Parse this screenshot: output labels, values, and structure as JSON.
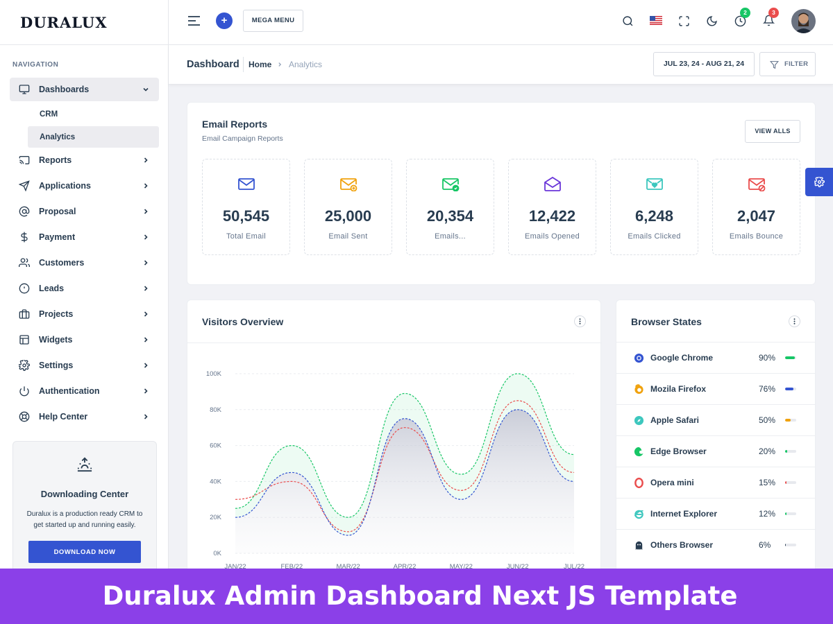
{
  "brand": {
    "logo": "DURALUX"
  },
  "sidebar": {
    "caption": "NAVIGATION",
    "items": [
      {
        "label": "Dashboards",
        "icon": "monitor-icon"
      },
      {
        "label": "Reports",
        "icon": "cast-icon"
      },
      {
        "label": "Applications",
        "icon": "send-icon"
      },
      {
        "label": "Proposal",
        "icon": "at-sign-icon"
      },
      {
        "label": "Payment",
        "icon": "dollar-icon"
      },
      {
        "label": "Customers",
        "icon": "users-icon"
      },
      {
        "label": "Leads",
        "icon": "alert-circle-icon"
      },
      {
        "label": "Projects",
        "icon": "briefcase-icon"
      },
      {
        "label": "Widgets",
        "icon": "layout-icon"
      },
      {
        "label": "Settings",
        "icon": "gear-icon"
      },
      {
        "label": "Authentication",
        "icon": "power-icon"
      },
      {
        "label": "Help Center",
        "icon": "life-buoy-icon"
      }
    ],
    "subitems": [
      {
        "label": "CRM"
      },
      {
        "label": "Analytics"
      }
    ],
    "download": {
      "title": "Downloading Center",
      "text": "Duralux is a production ready CRM to get started up and running easily.",
      "button": "DOWNLOAD NOW"
    }
  },
  "topbar": {
    "mega_menu": "MEGA MENU",
    "plus": "+",
    "timer_badge": "2",
    "notif_badge": "3"
  },
  "pagebar": {
    "title": "Dashboard",
    "crumb_home": "Home",
    "crumb_current": "Analytics",
    "date_range": "JUL 23, 24 - AUG 21, 24",
    "filter": "FILTER"
  },
  "email": {
    "title": "Email Reports",
    "subtitle": "Email Campaign Reports",
    "view_all": "VIEW ALLS",
    "stats": [
      {
        "value": "50,545",
        "label": "Total Email",
        "color": "#3454d1",
        "icon": "mail-icon"
      },
      {
        "value": "25,000",
        "label": "Email Sent",
        "color": "#f0a20e",
        "icon": "mail-plus-icon"
      },
      {
        "value": "20,354",
        "label": "Emails...",
        "color": "#17c666",
        "icon": "mail-check-icon"
      },
      {
        "value": "12,422",
        "label": "Emails Opened",
        "color": "#6a36d9",
        "icon": "mail-open-icon"
      },
      {
        "value": "6,248",
        "label": "Emails Clicked",
        "color": "#3dc7be",
        "icon": "mail-heart-icon"
      },
      {
        "value": "2,047",
        "label": "Emails Bounce",
        "color": "#ea4d4d",
        "icon": "mail-x-icon"
      }
    ]
  },
  "visitors": {
    "title": "Visitors Overview"
  },
  "browsers": {
    "title": "Browser States",
    "rows": [
      {
        "name": "Google Chrome",
        "pct": "90%",
        "value": 0.9,
        "color": "#17c666",
        "icon": "chrome-icon"
      },
      {
        "name": "Mozila Firefox",
        "pct": "76%",
        "value": 0.76,
        "color": "#3454d1",
        "icon": "firefox-icon"
      },
      {
        "name": "Apple Safari",
        "pct": "50%",
        "value": 0.5,
        "color": "#f0a20e",
        "icon": "safari-icon"
      },
      {
        "name": "Edge Browser",
        "pct": "20%",
        "value": 0.2,
        "color": "#17c666",
        "icon": "edge-icon"
      },
      {
        "name": "Opera mini",
        "pct": "15%",
        "value": 0.15,
        "color": "#ea4d4d",
        "icon": "opera-icon"
      },
      {
        "name": "Internet Explorer",
        "pct": "12%",
        "value": 0.12,
        "color": "#17c666",
        "icon": "ie-icon"
      },
      {
        "name": "Others Browser",
        "pct": "6%",
        "value": 0.06,
        "color": "#283c50",
        "icon": "others-icon"
      }
    ]
  },
  "banner": {
    "text": "Duralux Admin Dashboard Next JS Template"
  },
  "chart_data": {
    "type": "line",
    "title": "Visitors Overview",
    "categories": [
      "JAN/22",
      "FEB/22",
      "MAR/22",
      "APR/22",
      "MAY/22",
      "JUN/22",
      "JUL/22"
    ],
    "ylim": [
      0,
      100000
    ],
    "yticks": [
      "0K",
      "20K",
      "40K",
      "60K",
      "80K",
      "100K"
    ],
    "series": [
      {
        "name": "Series A (green)",
        "color": "#17c666",
        "values": [
          25000,
          60000,
          20000,
          89000,
          44000,
          100000,
          55000
        ]
      },
      {
        "name": "Series B (red)",
        "color": "#ea4d4d",
        "values": [
          30000,
          40000,
          12000,
          70000,
          35000,
          85000,
          45000
        ]
      },
      {
        "name": "Series C (blue)",
        "color": "#3454d1",
        "values": [
          20000,
          45000,
          10000,
          75000,
          30000,
          80000,
          40000
        ]
      }
    ]
  }
}
